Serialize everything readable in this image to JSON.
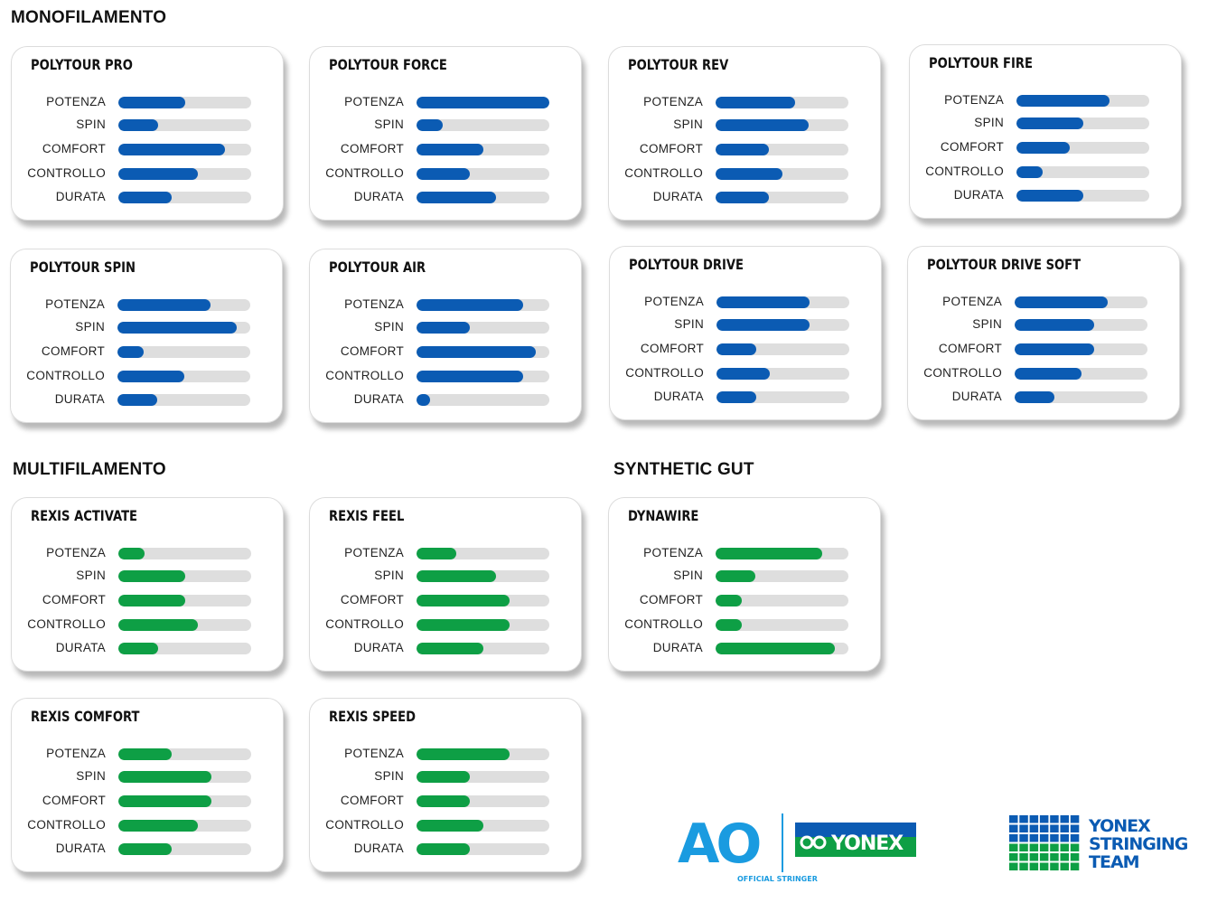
{
  "sections": {
    "mono": "MONOFILAMENTO",
    "multi": "MULTIFILAMENTO",
    "gut": "SYNTHETIC GUT"
  },
  "colors": {
    "mono": "#0b5bb3",
    "multi": "#0e9f45",
    "gut": "#0e9f45",
    "track": "#dedede"
  },
  "attribute_labels": [
    "POTENZA",
    "SPIN",
    "COMFORT",
    "CONTROLLO",
    "DURATA"
  ],
  "chart_data": [
    {
      "type": "bar",
      "title": "POLYTOUR PRO",
      "group": "mono",
      "categories": [
        "POTENZA",
        "SPIN",
        "COMFORT",
        "CONTROLLO",
        "DURATA"
      ],
      "values": [
        0.5,
        0.3,
        0.8,
        0.6,
        0.4
      ],
      "ylim": [
        0,
        1
      ]
    },
    {
      "type": "bar",
      "title": "POLYTOUR FORCE",
      "group": "mono",
      "categories": [
        "POTENZA",
        "SPIN",
        "COMFORT",
        "CONTROLLO",
        "DURATA"
      ],
      "values": [
        1.0,
        0.2,
        0.5,
        0.4,
        0.6
      ],
      "ylim": [
        0,
        1
      ]
    },
    {
      "type": "bar",
      "title": "POLYTOUR REV",
      "group": "mono",
      "categories": [
        "POTENZA",
        "SPIN",
        "COMFORT",
        "CONTROLLO",
        "DURATA"
      ],
      "values": [
        0.6,
        0.7,
        0.4,
        0.5,
        0.4
      ],
      "ylim": [
        0,
        1
      ]
    },
    {
      "type": "bar",
      "title": "POLYTOUR FIRE",
      "group": "mono",
      "categories": [
        "POTENZA",
        "SPIN",
        "COMFORT",
        "CONTROLLO",
        "DURATA"
      ],
      "values": [
        0.7,
        0.5,
        0.4,
        0.2,
        0.5
      ],
      "ylim": [
        0,
        1
      ]
    },
    {
      "type": "bar",
      "title": "POLYTOUR SPIN",
      "group": "mono",
      "categories": [
        "POTENZA",
        "SPIN",
        "COMFORT",
        "CONTROLLO",
        "DURATA"
      ],
      "values": [
        0.7,
        0.9,
        0.2,
        0.5,
        0.3
      ],
      "ylim": [
        0,
        1
      ]
    },
    {
      "type": "bar",
      "title": "POLYTOUR AIR",
      "group": "mono",
      "categories": [
        "POTENZA",
        "SPIN",
        "COMFORT",
        "CONTROLLO",
        "DURATA"
      ],
      "values": [
        0.8,
        0.4,
        0.9,
        0.8,
        0.1
      ],
      "ylim": [
        0,
        1
      ]
    },
    {
      "type": "bar",
      "title": "POLYTOUR DRIVE",
      "group": "mono",
      "categories": [
        "POTENZA",
        "SPIN",
        "COMFORT",
        "CONTROLLO",
        "DURATA"
      ],
      "values": [
        0.7,
        0.7,
        0.3,
        0.4,
        0.3
      ],
      "ylim": [
        0,
        1
      ]
    },
    {
      "type": "bar",
      "title": "POLYTOUR DRIVE SOFT",
      "group": "mono",
      "categories": [
        "POTENZA",
        "SPIN",
        "COMFORT",
        "CONTROLLO",
        "DURATA"
      ],
      "values": [
        0.7,
        0.6,
        0.6,
        0.5,
        0.3
      ],
      "ylim": [
        0,
        1
      ]
    },
    {
      "type": "bar",
      "title": "REXIS ACTIVATE",
      "group": "multi",
      "categories": [
        "POTENZA",
        "SPIN",
        "COMFORT",
        "CONTROLLO",
        "DURATA"
      ],
      "values": [
        0.2,
        0.5,
        0.5,
        0.6,
        0.3
      ],
      "ylim": [
        0,
        1
      ]
    },
    {
      "type": "bar",
      "title": "REXIS FEEL",
      "group": "multi",
      "categories": [
        "POTENZA",
        "SPIN",
        "COMFORT",
        "CONTROLLO",
        "DURATA"
      ],
      "values": [
        0.3,
        0.6,
        0.7,
        0.7,
        0.5
      ],
      "ylim": [
        0,
        1
      ]
    },
    {
      "type": "bar",
      "title": "DYNAWIRE",
      "group": "gut",
      "categories": [
        "POTENZA",
        "SPIN",
        "COMFORT",
        "CONTROLLO",
        "DURATA"
      ],
      "values": [
        0.8,
        0.3,
        0.2,
        0.2,
        0.9
      ],
      "ylim": [
        0,
        1
      ]
    },
    {
      "type": "bar",
      "title": "REXIS COMFORT",
      "group": "multi",
      "categories": [
        "POTENZA",
        "SPIN",
        "COMFORT",
        "CONTROLLO",
        "DURATA"
      ],
      "values": [
        0.4,
        0.7,
        0.7,
        0.6,
        0.4
      ],
      "ylim": [
        0,
        1
      ]
    },
    {
      "type": "bar",
      "title": "REXIS SPEED",
      "group": "multi",
      "categories": [
        "POTENZA",
        "SPIN",
        "COMFORT",
        "CONTROLLO",
        "DURATA"
      ],
      "values": [
        0.7,
        0.4,
        0.4,
        0.5,
        0.4
      ],
      "ylim": [
        0,
        1
      ]
    }
  ],
  "logos": {
    "ao_text": "AO",
    "ao_caption": "OFFICIAL STRINGER",
    "yonex": "YONEX",
    "team_line1": "YONEX",
    "team_line2": "STRINGING",
    "team_line3": "TEAM"
  }
}
